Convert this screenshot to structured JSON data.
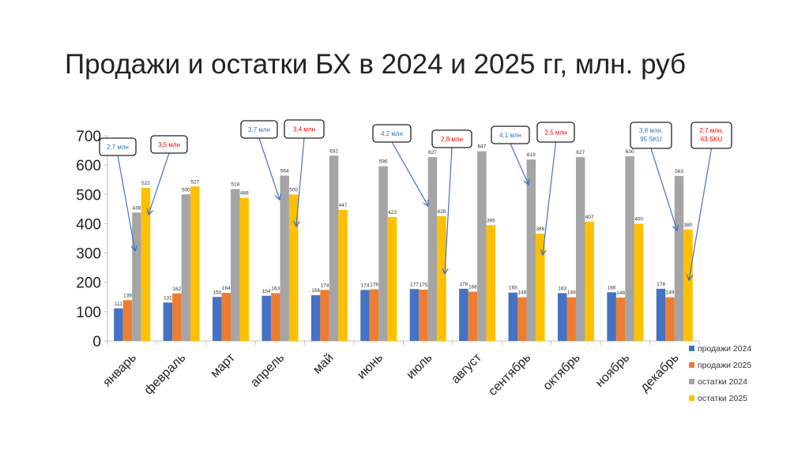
{
  "chart_data": {
    "type": "bar",
    "title": "Продажи и остатки БХ в 2024 и 2025 гг, млн. руб",
    "categories": [
      "январь",
      "февраль",
      "март",
      "апрель",
      "май",
      "июнь",
      "июль",
      "август",
      "сентябрь",
      "октябрь",
      "ноябрь",
      "декабрь"
    ],
    "ylim": [
      0,
      700
    ],
    "yticks": [
      0,
      100,
      200,
      300,
      400,
      500,
      600,
      700
    ],
    "grid": false,
    "legend_position": "right",
    "series": [
      {
        "name": "продажи 2024",
        "color": "#4472C4",
        "values": [
          111,
          131,
          150,
          154,
          156,
          174,
          177,
          178,
          165,
          163,
          166,
          178
        ]
      },
      {
        "name": "продажи 2025",
        "color": "#ED7D31",
        "values": [
          139,
          162,
          164,
          163,
          174,
          176,
          175,
          168,
          149,
          149,
          148,
          149
        ]
      },
      {
        "name": "остатки 2024",
        "color": "#A5A5A5",
        "values": [
          438,
          500,
          518,
          564,
          632,
          596,
          627,
          647,
          619,
          627,
          630,
          563
        ]
      },
      {
        "name": "остатки 2025",
        "color": "#FFC000",
        "values": [
          522,
          527,
          488,
          500,
          447,
          423,
          426,
          395,
          366,
          407,
          400,
          380
        ]
      }
    ],
    "annotations": [
      {
        "text": [
          "2,7 млн"
        ],
        "color": "#2E75B6"
      },
      {
        "text": [
          "3,5 млн"
        ],
        "color": "#FF0000"
      },
      {
        "text": [
          "3,7 млн"
        ],
        "color": "#2E75B6"
      },
      {
        "text": [
          "3,4 млн"
        ],
        "color": "#FF0000"
      },
      {
        "text": [
          "4,2 млн"
        ],
        "color": "#2E75B6"
      },
      {
        "text": [
          "2,8 млн"
        ],
        "color": "#FF0000"
      },
      {
        "text": [
          "4,1 млн"
        ],
        "color": "#2E75B6"
      },
      {
        "text": [
          "2,5 млн"
        ],
        "color": "#FF0000"
      },
      {
        "text": [
          "3,8 млн,",
          "95 SKU"
        ],
        "color": "#2E75B6"
      },
      {
        "text": [
          "2,7 млн,",
          "63 SKU"
        ],
        "color": "#FF0000"
      }
    ]
  }
}
